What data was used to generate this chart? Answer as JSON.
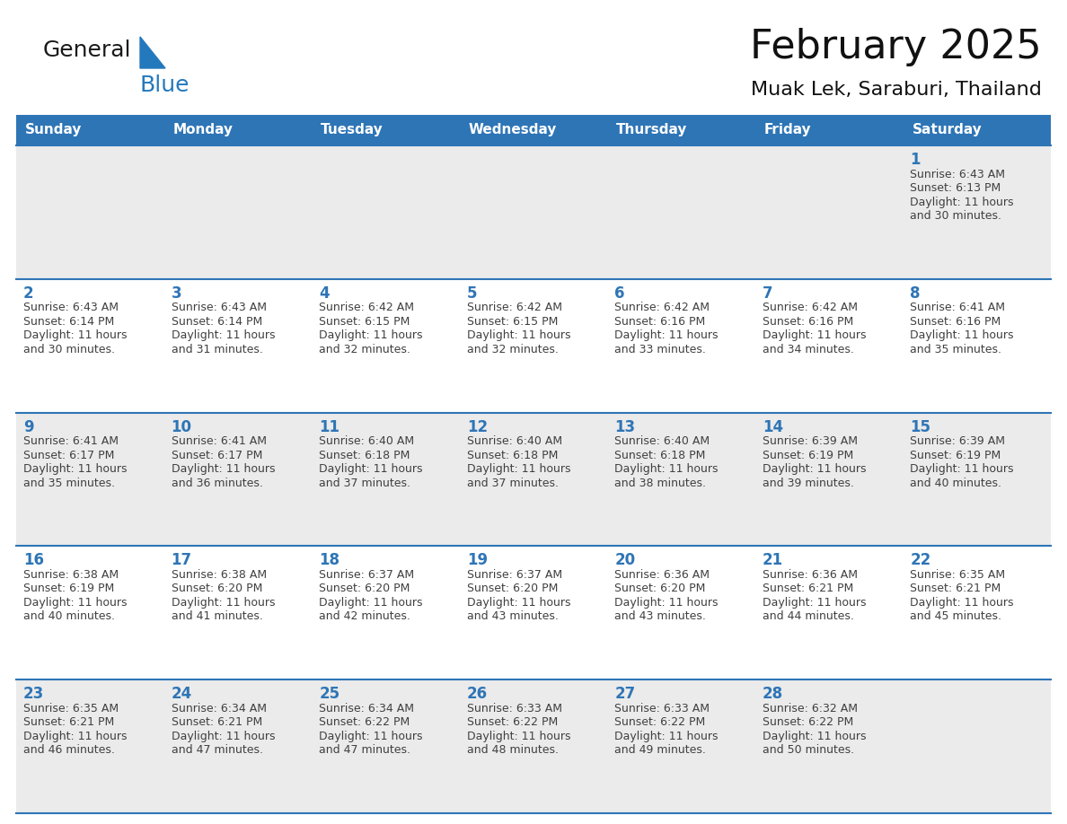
{
  "title": "February 2025",
  "subtitle": "Muak Lek, Saraburi, Thailand",
  "header_color": "#2E75B6",
  "header_text_color": "#FFFFFF",
  "cell_bg_even": "#EBEBEB",
  "cell_bg_odd": "#FFFFFF",
  "line_color": "#2E75B6",
  "day_number_color": "#2E75B6",
  "text_color": "#404040",
  "days_of_week": [
    "Sunday",
    "Monday",
    "Tuesday",
    "Wednesday",
    "Thursday",
    "Friday",
    "Saturday"
  ],
  "weeks": [
    [
      {
        "day": null,
        "sunrise": null,
        "sunset": null,
        "daylight": null
      },
      {
        "day": null,
        "sunrise": null,
        "sunset": null,
        "daylight": null
      },
      {
        "day": null,
        "sunrise": null,
        "sunset": null,
        "daylight": null
      },
      {
        "day": null,
        "sunrise": null,
        "sunset": null,
        "daylight": null
      },
      {
        "day": null,
        "sunrise": null,
        "sunset": null,
        "daylight": null
      },
      {
        "day": null,
        "sunrise": null,
        "sunset": null,
        "daylight": null
      },
      {
        "day": 1,
        "sunrise": "6:43 AM",
        "sunset": "6:13 PM",
        "daylight": "11 hours and 30 minutes."
      }
    ],
    [
      {
        "day": 2,
        "sunrise": "6:43 AM",
        "sunset": "6:14 PM",
        "daylight": "11 hours and 30 minutes."
      },
      {
        "day": 3,
        "sunrise": "6:43 AM",
        "sunset": "6:14 PM",
        "daylight": "11 hours and 31 minutes."
      },
      {
        "day": 4,
        "sunrise": "6:42 AM",
        "sunset": "6:15 PM",
        "daylight": "11 hours and 32 minutes."
      },
      {
        "day": 5,
        "sunrise": "6:42 AM",
        "sunset": "6:15 PM",
        "daylight": "11 hours and 32 minutes."
      },
      {
        "day": 6,
        "sunrise": "6:42 AM",
        "sunset": "6:16 PM",
        "daylight": "11 hours and 33 minutes."
      },
      {
        "day": 7,
        "sunrise": "6:42 AM",
        "sunset": "6:16 PM",
        "daylight": "11 hours and 34 minutes."
      },
      {
        "day": 8,
        "sunrise": "6:41 AM",
        "sunset": "6:16 PM",
        "daylight": "11 hours and 35 minutes."
      }
    ],
    [
      {
        "day": 9,
        "sunrise": "6:41 AM",
        "sunset": "6:17 PM",
        "daylight": "11 hours and 35 minutes."
      },
      {
        "day": 10,
        "sunrise": "6:41 AM",
        "sunset": "6:17 PM",
        "daylight": "11 hours and 36 minutes."
      },
      {
        "day": 11,
        "sunrise": "6:40 AM",
        "sunset": "6:18 PM",
        "daylight": "11 hours and 37 minutes."
      },
      {
        "day": 12,
        "sunrise": "6:40 AM",
        "sunset": "6:18 PM",
        "daylight": "11 hours and 37 minutes."
      },
      {
        "day": 13,
        "sunrise": "6:40 AM",
        "sunset": "6:18 PM",
        "daylight": "11 hours and 38 minutes."
      },
      {
        "day": 14,
        "sunrise": "6:39 AM",
        "sunset": "6:19 PM",
        "daylight": "11 hours and 39 minutes."
      },
      {
        "day": 15,
        "sunrise": "6:39 AM",
        "sunset": "6:19 PM",
        "daylight": "11 hours and 40 minutes."
      }
    ],
    [
      {
        "day": 16,
        "sunrise": "6:38 AM",
        "sunset": "6:19 PM",
        "daylight": "11 hours and 40 minutes."
      },
      {
        "day": 17,
        "sunrise": "6:38 AM",
        "sunset": "6:20 PM",
        "daylight": "11 hours and 41 minutes."
      },
      {
        "day": 18,
        "sunrise": "6:37 AM",
        "sunset": "6:20 PM",
        "daylight": "11 hours and 42 minutes."
      },
      {
        "day": 19,
        "sunrise": "6:37 AM",
        "sunset": "6:20 PM",
        "daylight": "11 hours and 43 minutes."
      },
      {
        "day": 20,
        "sunrise": "6:36 AM",
        "sunset": "6:20 PM",
        "daylight": "11 hours and 43 minutes."
      },
      {
        "day": 21,
        "sunrise": "6:36 AM",
        "sunset": "6:21 PM",
        "daylight": "11 hours and 44 minutes."
      },
      {
        "day": 22,
        "sunrise": "6:35 AM",
        "sunset": "6:21 PM",
        "daylight": "11 hours and 45 minutes."
      }
    ],
    [
      {
        "day": 23,
        "sunrise": "6:35 AM",
        "sunset": "6:21 PM",
        "daylight": "11 hours and 46 minutes."
      },
      {
        "day": 24,
        "sunrise": "6:34 AM",
        "sunset": "6:21 PM",
        "daylight": "11 hours and 47 minutes."
      },
      {
        "day": 25,
        "sunrise": "6:34 AM",
        "sunset": "6:22 PM",
        "daylight": "11 hours and 47 minutes."
      },
      {
        "day": 26,
        "sunrise": "6:33 AM",
        "sunset": "6:22 PM",
        "daylight": "11 hours and 48 minutes."
      },
      {
        "day": 27,
        "sunrise": "6:33 AM",
        "sunset": "6:22 PM",
        "daylight": "11 hours and 49 minutes."
      },
      {
        "day": 28,
        "sunrise": "6:32 AM",
        "sunset": "6:22 PM",
        "daylight": "11 hours and 50 minutes."
      },
      {
        "day": null,
        "sunrise": null,
        "sunset": null,
        "daylight": null
      }
    ]
  ],
  "logo_text1": "General",
  "logo_text2": "Blue",
  "logo_color1": "#1a1a1a",
  "logo_color2": "#2479BD",
  "fig_width": 11.88,
  "fig_height": 9.18,
  "dpi": 100
}
